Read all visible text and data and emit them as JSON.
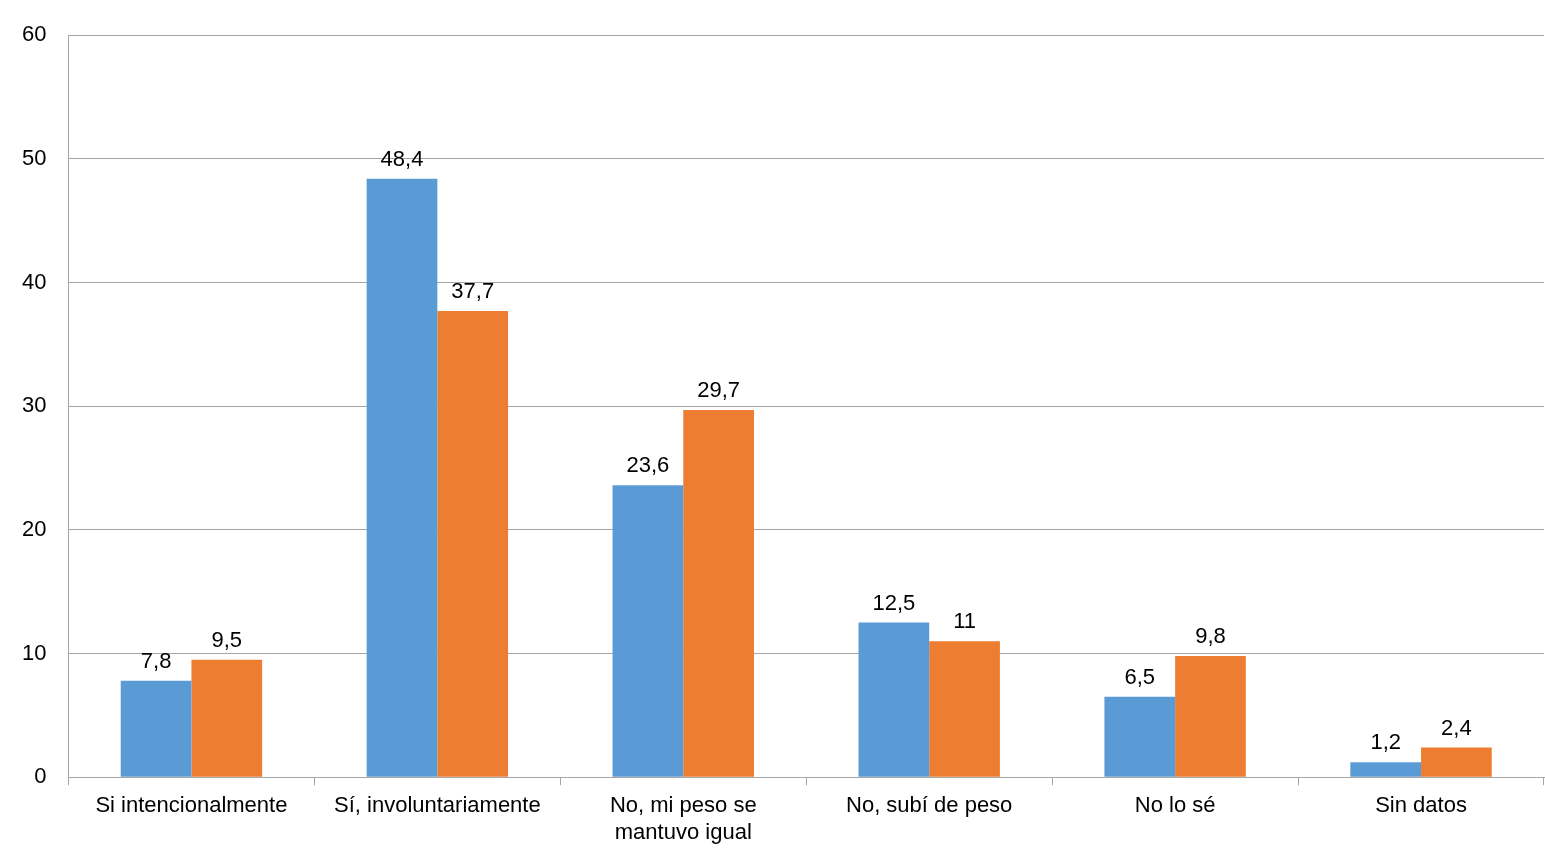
{
  "chart_data": {
    "type": "bar",
    "categories": [
      "Si intencionalmente",
      "Sí, involuntariamente",
      "No, mi peso se mantuvo igual",
      "No, subí de peso",
      "No lo sé",
      "Sin datos"
    ],
    "series": [
      {
        "color": "#5b9bd5",
        "values": [
          7.8,
          48.4,
          23.6,
          12.5,
          6.5,
          1.2
        ],
        "value_labels": [
          "7,8",
          "48,4",
          "23,6",
          "12,5",
          "6,5",
          "1,2"
        ]
      },
      {
        "color": "#ed7d31",
        "values": [
          9.5,
          37.7,
          29.7,
          11,
          9.8,
          2.4
        ],
        "value_labels": [
          "9,5",
          "37,7",
          "29,7",
          "11",
          "9,8",
          "2,4"
        ]
      }
    ],
    "ylim": [
      0,
      60
    ],
    "yticks": [
      0,
      10,
      20,
      30,
      40,
      50,
      60
    ],
    "grid": "y",
    "legend": false
  }
}
